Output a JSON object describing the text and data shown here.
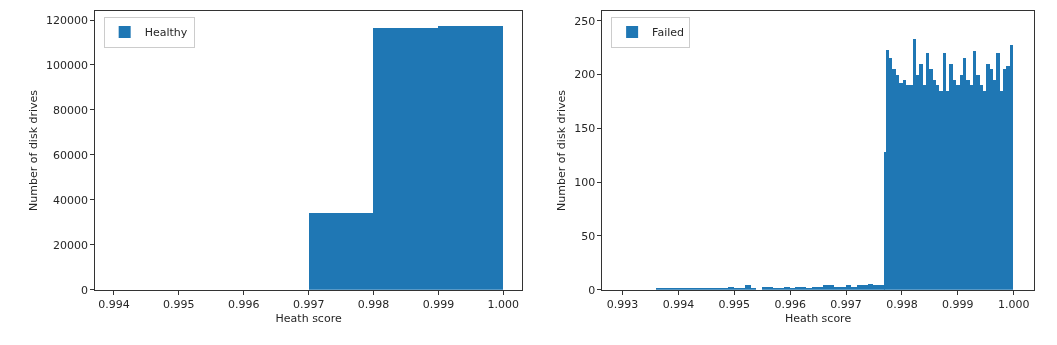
{
  "chart_data": [
    {
      "type": "histogram",
      "xlabel": "Heath score",
      "ylabel": "Number of disk drives",
      "legend": "top left",
      "bins": [
        0.997,
        0.998,
        0.999,
        1.0
      ],
      "series": [
        {
          "name": "Healthy",
          "color": "#1f77b4",
          "values": [
            34000,
            116500,
            117500
          ]
        }
      ],
      "xlim": [
        0.99371,
        1.00029
      ],
      "ylim": [
        0,
        124000
      ],
      "xticks": [
        0.994,
        0.995,
        0.996,
        0.997,
        0.998,
        0.999,
        {
          "value": 1.0,
          "label": "1.000"
        }
      ],
      "yticks": [
        0,
        20000,
        40000,
        60000,
        80000,
        100000,
        120000
      ]
    },
    {
      "type": "histogram",
      "xlabel": "Heath score",
      "ylabel": "Number of disk drives",
      "legend": "top left",
      "bins": [
        0.9936,
        0.9937,
        0.9938,
        0.9939,
        0.994,
        0.9941,
        0.9942,
        0.9943,
        0.9944,
        0.9945,
        0.9946,
        0.9947,
        0.9948,
        0.9949,
        0.995,
        0.9951,
        0.9952,
        0.9953,
        0.9954,
        0.9955,
        0.9956,
        0.9957,
        0.9958,
        0.9959,
        0.996,
        0.9961,
        0.9962,
        0.9963,
        0.9964,
        0.9965,
        0.9966,
        0.9967,
        0.9968,
        0.9969,
        0.997,
        0.9971,
        0.9972,
        0.9973,
        0.9974,
        0.9975,
        0.9976,
        0.9977,
        0.99772,
        0.99778,
        0.99784,
        0.9979,
        0.99796,
        0.99802,
        0.99808,
        0.99814,
        0.9982,
        0.99826,
        0.99832,
        0.99838,
        0.99844,
        0.9985,
        0.99856,
        0.99862,
        0.99868,
        0.99874,
        0.9988,
        0.99886,
        0.99892,
        0.99898,
        0.99904,
        0.9991,
        0.99916,
        0.99922,
        0.99928,
        0.99934,
        0.9994,
        0.99946,
        0.99952,
        0.99958,
        0.99964,
        0.9997,
        0.99976,
        0.99982,
        0.99988,
        0.99994,
        1.0
      ],
      "series": [
        {
          "name": "Failed",
          "color": "#1f77b4",
          "values": [
            1,
            1,
            1,
            2,
            1,
            1,
            1,
            1,
            1,
            1,
            2,
            2,
            2,
            3,
            2,
            2,
            4,
            2,
            0,
            3,
            3,
            2,
            2,
            3,
            2,
            3,
            3,
            2,
            3,
            3,
            4,
            4,
            3,
            3,
            4,
            3,
            4,
            4,
            5,
            4,
            4,
            128,
            223,
            215,
            205,
            200,
            192,
            195,
            190,
            190,
            233,
            200,
            210,
            190,
            220,
            205,
            195,
            190,
            185,
            220,
            185,
            210,
            195,
            190,
            200,
            215,
            195,
            190,
            222,
            200,
            190,
            185,
            210,
            205,
            195,
            220,
            185,
            205,
            208,
            227
          ]
        }
      ],
      "xlim": [
        0.99264,
        1.00036
      ],
      "ylim": [
        0,
        259
      ],
      "xticks": [
        0.993,
        0.994,
        0.995,
        0.996,
        0.997,
        0.998,
        0.999,
        {
          "value": 1.0,
          "label": "1.000"
        }
      ],
      "yticks": [
        0,
        50,
        100,
        150,
        200,
        250
      ]
    }
  ]
}
